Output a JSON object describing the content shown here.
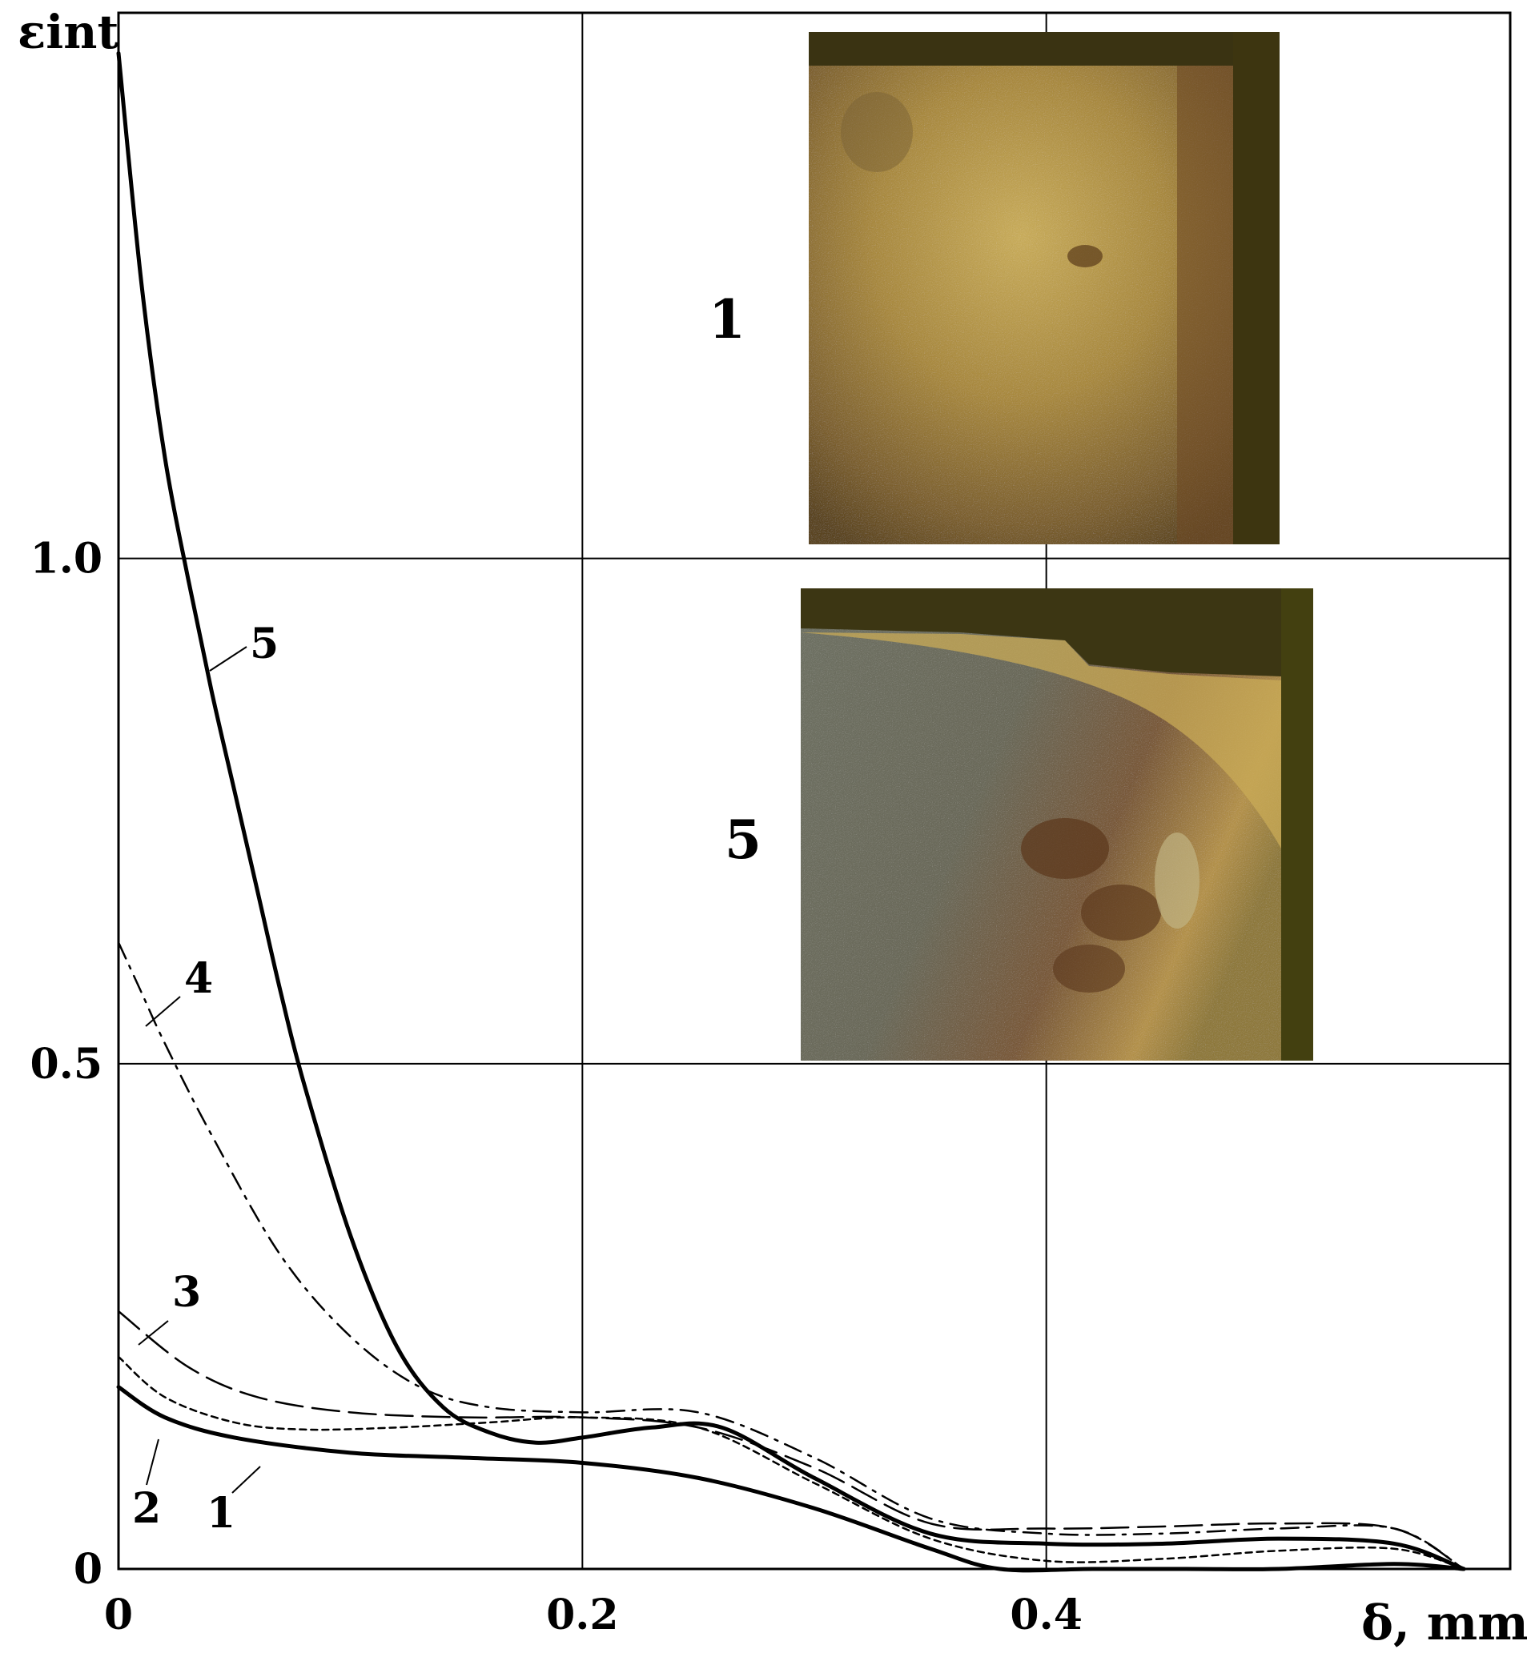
{
  "chart_data": {
    "type": "line",
    "xlabel": "δ, mm",
    "ylabel": "εint",
    "xlim": [
      0,
      0.6
    ],
    "ylim": [
      0,
      1.54
    ],
    "grid": true,
    "x_ticks": [
      "0",
      "0.2",
      "0.4"
    ],
    "y_ticks": [
      "0",
      "0.5",
      "1.0"
    ],
    "series": [
      {
        "name": "1",
        "style": "solid-thick",
        "x": [
          0,
          0.02,
          0.05,
          0.1,
          0.15,
          0.2,
          0.25,
          0.3,
          0.35,
          0.38,
          0.42,
          0.46,
          0.5,
          0.55,
          0.58
        ],
        "y": [
          0.18,
          0.15,
          0.13,
          0.115,
          0.11,
          0.105,
          0.09,
          0.06,
          0.02,
          0.0,
          0.0,
          0.0,
          0.0,
          0.005,
          0.0
        ]
      },
      {
        "name": "2",
        "style": "short-dash",
        "x": [
          0,
          0.02,
          0.05,
          0.08,
          0.12,
          0.16,
          0.2,
          0.25,
          0.3,
          0.35,
          0.4,
          0.45,
          0.5,
          0.55,
          0.58
        ],
        "y": [
          0.21,
          0.17,
          0.145,
          0.138,
          0.14,
          0.145,
          0.15,
          0.14,
          0.085,
          0.03,
          0.008,
          0.01,
          0.018,
          0.02,
          0.0
        ]
      },
      {
        "name": "3",
        "style": "long-dash",
        "x": [
          0,
          0.03,
          0.06,
          0.1,
          0.15,
          0.2,
          0.25,
          0.3,
          0.35,
          0.4,
          0.45,
          0.5,
          0.55,
          0.58
        ],
        "y": [
          0.255,
          0.2,
          0.17,
          0.155,
          0.15,
          0.15,
          0.14,
          0.1,
          0.045,
          0.04,
          0.042,
          0.045,
          0.04,
          0.0
        ]
      },
      {
        "name": "4",
        "style": "dash-dot",
        "x": [
          0,
          0.01,
          0.02,
          0.04,
          0.07,
          0.1,
          0.13,
          0.16,
          0.2,
          0.25,
          0.3,
          0.35,
          0.4,
          0.45,
          0.5,
          0.55,
          0.58
        ],
        "y": [
          0.62,
          0.57,
          0.52,
          0.43,
          0.31,
          0.23,
          0.18,
          0.16,
          0.155,
          0.155,
          0.11,
          0.05,
          0.035,
          0.035,
          0.04,
          0.04,
          0.0
        ]
      },
      {
        "name": "5",
        "style": "solid-thick",
        "x": [
          0,
          0.01,
          0.02,
          0.03,
          0.04,
          0.05,
          0.06,
          0.07,
          0.08,
          0.1,
          0.12,
          0.14,
          0.16,
          0.18,
          0.2,
          0.23,
          0.26,
          0.3,
          0.35,
          0.4,
          0.45,
          0.5,
          0.55,
          0.58
        ],
        "y": [
          1.5,
          1.27,
          1.1,
          0.98,
          0.87,
          0.77,
          0.67,
          0.57,
          0.48,
          0.33,
          0.22,
          0.16,
          0.135,
          0.125,
          0.13,
          0.14,
          0.14,
          0.09,
          0.035,
          0.025,
          0.025,
          0.03,
          0.025,
          0.0
        ]
      }
    ],
    "insets": [
      {
        "label": "1"
      },
      {
        "label": "5"
      }
    ]
  },
  "colors": {
    "line": "#000000",
    "grid": "#000000",
    "background": "#ffffff"
  }
}
